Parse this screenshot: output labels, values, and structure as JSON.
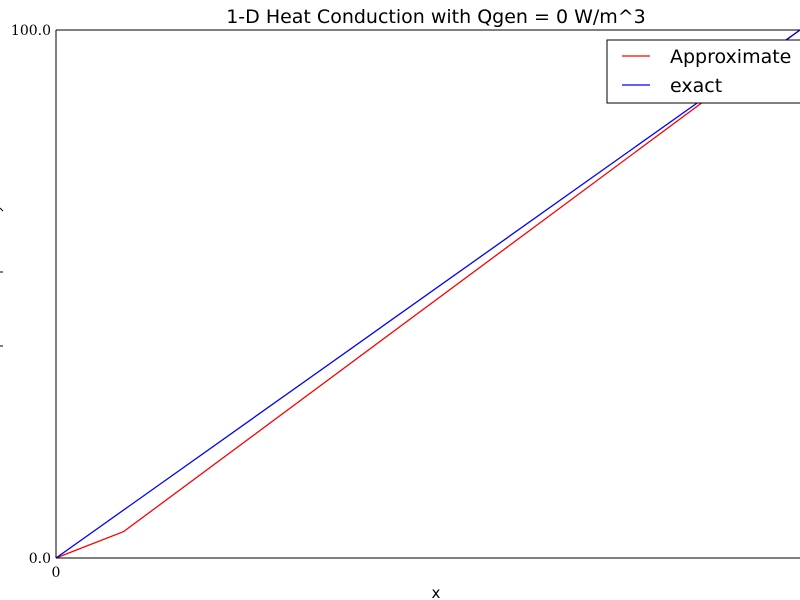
{
  "chart_data": {
    "type": "line",
    "title": "1-D Heat Conduction with Qgen = 0 W/m^3",
    "xlabel": "x",
    "ylabel": "",
    "xlim": [
      0,
      1
    ],
    "ylim": [
      0,
      100
    ],
    "x_tick_labels": [
      "0"
    ],
    "y_tick_labels": [
      "0.0",
      "100.0"
    ],
    "legend_position": "top-right",
    "series": [
      {
        "name": "Approximate",
        "color": "#ff0000",
        "x": [
          0,
          0.0909,
          1
        ],
        "y": [
          0,
          5,
          100
        ]
      },
      {
        "name": "exact",
        "color": "#0000ff",
        "x": [
          0,
          1
        ],
        "y": [
          0,
          100
        ]
      }
    ]
  }
}
